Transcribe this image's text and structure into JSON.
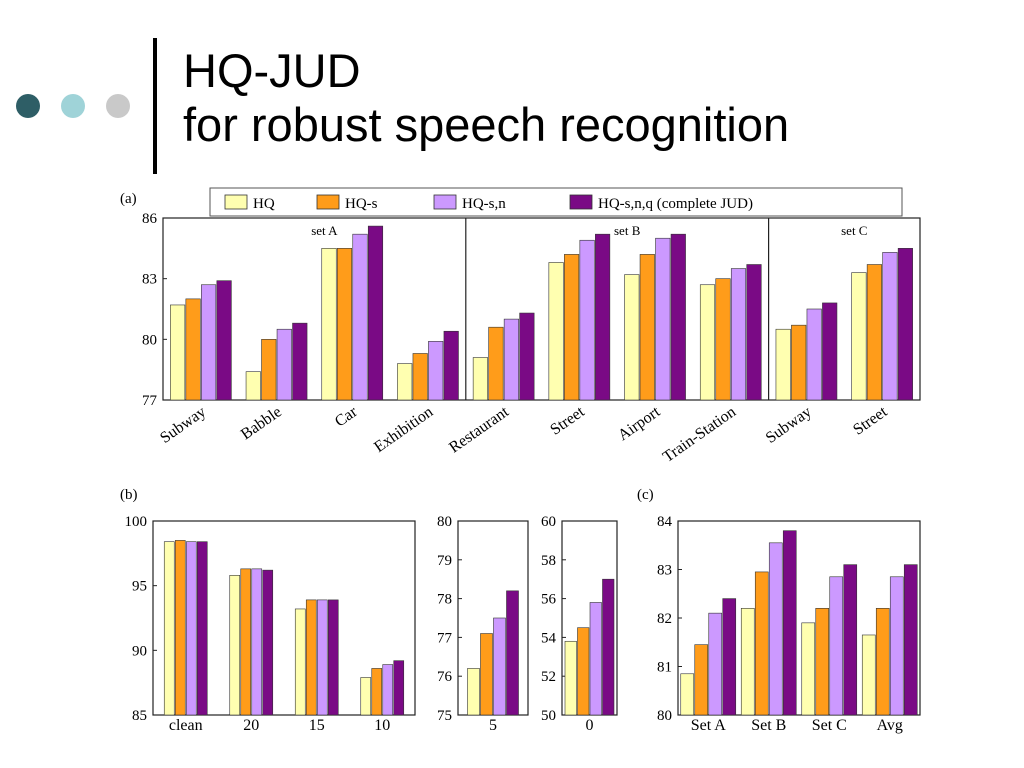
{
  "slide": {
    "title_line1": "HQ-JUD",
    "title_line2": "for robust speech recognition",
    "dot_colors": [
      "#2e5e66",
      "#9fd3d8",
      "#c9c9c9"
    ]
  },
  "colors": {
    "HQ": "#ffffb0",
    "HQ-s": "#ff9c1a",
    "HQ-s,n": "#cc99ff",
    "HQ-s,n,q": "#7a0a85"
  },
  "chart_data": [
    {
      "panel": "(a)",
      "type": "bar",
      "legend": [
        "HQ",
        "HQ-s",
        "HQ-s,n",
        "HQ-s,n,q (complete JUD)"
      ],
      "legend_placement": "top",
      "groups": [
        {
          "label": "set A",
          "categories": [
            "Subway",
            "Babble",
            "Car",
            "Exhibition"
          ]
        },
        {
          "label": "set B",
          "categories": [
            "Restaurant",
            "Street",
            "Airport",
            "Train-Station"
          ]
        },
        {
          "label": "set C",
          "categories": [
            "Subway",
            "Street"
          ]
        }
      ],
      "categories": [
        "Subway",
        "Babble",
        "Car",
        "Exhibition",
        "Restaurant",
        "Street",
        "Airport",
        "Train-Station",
        "Subway",
        "Street"
      ],
      "series": [
        {
          "name": "HQ",
          "values": [
            81.7,
            78.4,
            84.5,
            78.8,
            79.1,
            83.8,
            83.2,
            82.7,
            80.5,
            83.3
          ]
        },
        {
          "name": "HQ-s",
          "values": [
            82.0,
            80.0,
            84.5,
            79.3,
            80.6,
            84.2,
            84.2,
            83.0,
            80.7,
            83.7
          ]
        },
        {
          "name": "HQ-s,n",
          "values": [
            82.7,
            80.5,
            85.2,
            79.9,
            81.0,
            84.9,
            85.0,
            83.5,
            81.5,
            84.3
          ]
        },
        {
          "name": "HQ-s,n,q (complete JUD)",
          "values": [
            82.9,
            80.8,
            85.6,
            80.4,
            81.3,
            85.2,
            85.2,
            83.7,
            81.8,
            84.5
          ]
        }
      ],
      "ylim": [
        77,
        86
      ],
      "yticks": [
        "77",
        "80",
        "83",
        "86"
      ]
    },
    {
      "panel": "(b)",
      "type": "bar",
      "categories": [
        "clean",
        "20",
        "15",
        "10"
      ],
      "series": [
        {
          "name": "HQ",
          "values": [
            98.4,
            95.8,
            93.2,
            87.9
          ]
        },
        {
          "name": "HQ-s",
          "values": [
            98.5,
            96.3,
            93.9,
            88.6
          ]
        },
        {
          "name": "HQ-s,n",
          "values": [
            98.4,
            96.3,
            93.9,
            88.9
          ]
        },
        {
          "name": "HQ-s,n,q (complete JUD)",
          "values": [
            98.4,
            96.2,
            93.9,
            89.2
          ]
        }
      ],
      "ylim": [
        85,
        100
      ],
      "yticks": [
        "85",
        "90",
        "95",
        "100"
      ]
    },
    {
      "panel": "(b)",
      "type": "bar",
      "categories": [
        "5"
      ],
      "series": [
        {
          "name": "HQ",
          "values": [
            76.2
          ]
        },
        {
          "name": "HQ-s",
          "values": [
            77.1
          ]
        },
        {
          "name": "HQ-s,n",
          "values": [
            77.5
          ]
        },
        {
          "name": "HQ-s,n,q (complete JUD)",
          "values": [
            78.2
          ]
        }
      ],
      "ylim": [
        75,
        80
      ],
      "yticks": [
        "75",
        "76",
        "77",
        "78",
        "79",
        "80"
      ]
    },
    {
      "panel": "(b)",
      "type": "bar",
      "categories": [
        "0"
      ],
      "series": [
        {
          "name": "HQ",
          "values": [
            53.8
          ]
        },
        {
          "name": "HQ-s",
          "values": [
            54.5
          ]
        },
        {
          "name": "HQ-s,n",
          "values": [
            55.8
          ]
        },
        {
          "name": "HQ-s,n,q (complete JUD)",
          "values": [
            57.0
          ]
        }
      ],
      "ylim": [
        50,
        60
      ],
      "yticks": [
        "50",
        "52",
        "54",
        "56",
        "58",
        "60"
      ]
    },
    {
      "panel": "(c)",
      "type": "bar",
      "categories": [
        "Set A",
        "Set B",
        "Set C",
        "Avg"
      ],
      "series": [
        {
          "name": "HQ",
          "values": [
            80.85,
            82.2,
            81.9,
            81.65
          ]
        },
        {
          "name": "HQ-s",
          "values": [
            81.45,
            82.95,
            82.2,
            82.2
          ]
        },
        {
          "name": "HQ-s,n",
          "values": [
            82.1,
            83.55,
            82.85,
            82.85
          ]
        },
        {
          "name": "HQ-s,n,q (complete JUD)",
          "values": [
            82.4,
            83.8,
            83.1,
            83.1
          ]
        }
      ],
      "ylim": [
        80,
        84
      ],
      "yticks": [
        "80",
        "81",
        "82",
        "83",
        "84"
      ]
    }
  ]
}
